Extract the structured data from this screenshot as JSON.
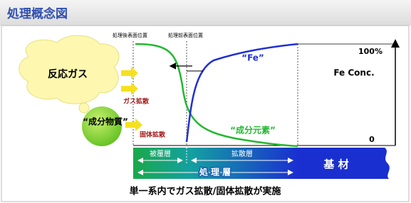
{
  "header": {
    "title": "処理概念図"
  },
  "positions": {
    "after": "処理後表面位置",
    "before": "処理前表面位置"
  },
  "gas": {
    "cloud": "反応ガス",
    "diffusion": "ガス拡散"
  },
  "substance": {
    "label": "“成分物質”",
    "diffusion": "固体拡散"
  },
  "curves": {
    "fe": "“Fe”",
    "element": "“成分元素”"
  },
  "axis": {
    "top": "100%",
    "name": "Fe Conc.",
    "bottom": "0"
  },
  "layers": {
    "coating": "被覆層",
    "diffusion": "拡散層",
    "treated": "処 理 層",
    "base": "基 材"
  },
  "caption": "単一系内でガス拡散/固体拡散が実施"
}
